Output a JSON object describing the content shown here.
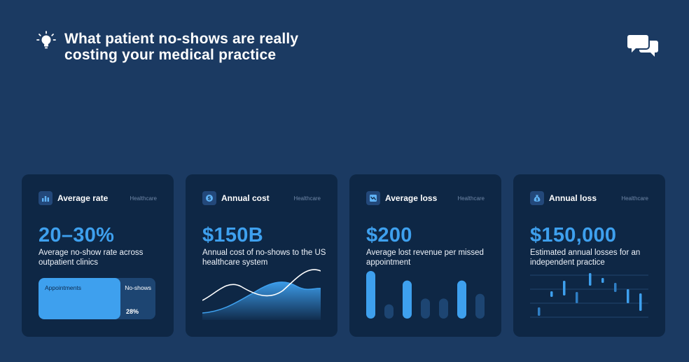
{
  "header": {
    "title": "What patient no-shows are really costing your medical practice",
    "bulb_icon": "lightbulb-icon",
    "chat_icon": "chat-bubbles-icon"
  },
  "colors": {
    "background": "#1b3a62",
    "card": "#0e2745",
    "accent": "#3ea0ee"
  },
  "cards": [
    {
      "title": "Average rate",
      "tag": "Healthcare",
      "value": "20–30%",
      "description": "Average no-show rate across outpatient clinics",
      "icon": "bar-chart-icon",
      "visual": {
        "fill_label": "Appointments",
        "rest_label": "No-shows",
        "rest_value": "28%",
        "rest_fraction": 0.28
      }
    },
    {
      "title": "Annual cost",
      "tag": "Healthcare",
      "value": "$150B",
      "description": "Annual cost of no-shows to the US healthcare system",
      "icon": "dollar-icon"
    },
    {
      "title": "Average loss",
      "tag": "Healthcare",
      "value": "$200",
      "description": "Average lost revenue per missed appointment",
      "icon": "trend-icon",
      "bars": [
        1.0,
        0.3,
        0.8,
        0.42,
        0.42,
        0.8,
        0.52
      ]
    },
    {
      "title": "Annual loss",
      "tag": "Healthcare",
      "value": "$150,000",
      "description": "Estimated annual losses for an independent practice",
      "icon": "money-bag-icon"
    }
  ]
}
